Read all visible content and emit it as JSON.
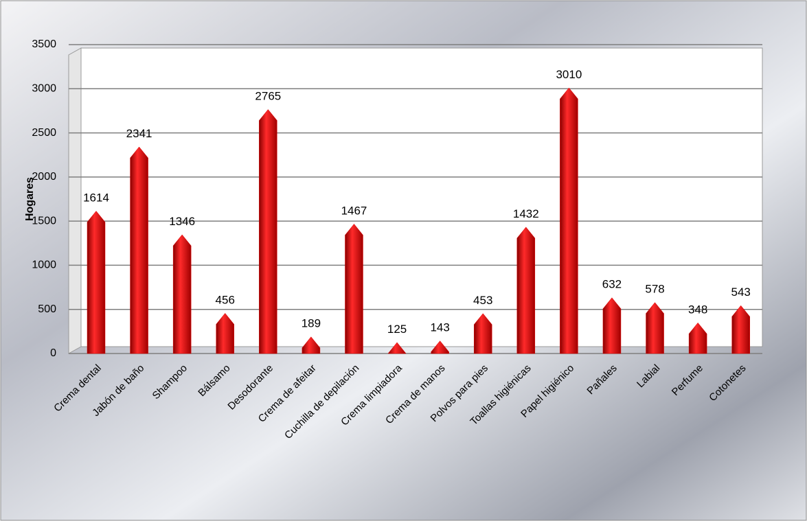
{
  "chart_data": {
    "type": "bar",
    "y_label": "Hogares",
    "categories": [
      "Crema dental",
      "Jabón de baño",
      "Shampoo",
      "Bálsamo",
      "Desodorante",
      "Crema de afeitar",
      "Cuchilla de depilación",
      "Crema limpiadora",
      "Crema de manos",
      "Polvos para pies",
      "Toallas higiénicas",
      "Papel higiénico",
      "Pañales",
      "Labial",
      "Perfume",
      "Cotonetes"
    ],
    "values": [
      1614,
      2341,
      1346,
      456,
      2765,
      189,
      1467,
      125,
      143,
      453,
      1432,
      3010,
      632,
      578,
      348,
      543
    ],
    "color": "#e00000",
    "ylim": [
      0,
      3500
    ],
    "yticks": [
      0,
      500,
      1000,
      1500,
      2000,
      2500,
      3000,
      3500
    ],
    "grid": true
  }
}
